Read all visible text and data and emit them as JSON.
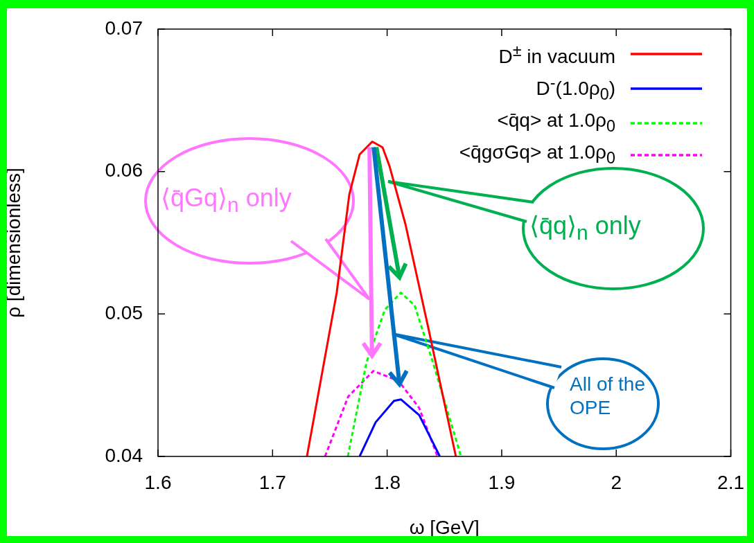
{
  "chart_data": {
    "type": "line",
    "xlabel": "ω [GeV]",
    "ylabel": "ρ [dimensionless]",
    "xlim": [
      1.6,
      2.1
    ],
    "ylim": [
      0.04,
      0.07
    ],
    "xticks": [
      1.6,
      1.7,
      1.8,
      1.9,
      2,
      2.1
    ],
    "yticks": [
      0.04,
      0.05,
      0.06,
      0.07
    ],
    "grid": false,
    "legend": "top right",
    "marker": "none",
    "series": [
      {
        "name": "D$^{±}$ in vacuum",
        "color": "#ff0000",
        "line_style": "solid",
        "x": [
          1.73,
          1.756,
          1.767,
          1.776,
          1.787,
          1.796,
          1.802,
          1.816,
          1.836,
          1.86
        ],
        "values": [
          0.04,
          0.0515,
          0.0584,
          0.0612,
          0.0621,
          0.0617,
          0.0604,
          0.0563,
          0.049,
          0.04
        ]
      },
      {
        "name": "D$^{-}$(1.0ρ$_{0}$)",
        "color": "#0000ff",
        "line_style": "solid",
        "x": [
          1.776,
          1.79,
          1.806,
          1.812,
          1.828,
          1.846
        ],
        "values": [
          0.04,
          0.0424,
          0.0439,
          0.044,
          0.0429,
          0.04
        ]
      },
      {
        "name": "<q̄q> at 1.0ρ$_{0}$",
        "color": "#00ff00",
        "line_style": "dashed",
        "x": [
          1.7657,
          1.782,
          1.798,
          1.812,
          1.824,
          1.84,
          1.8645
        ],
        "values": [
          0.04,
          0.0466,
          0.0503,
          0.0515,
          0.0506,
          0.0466,
          0.04
        ]
      },
      {
        "name": "<q̄gσGq> at 1.0ρ$_{0}$",
        "color": "#ff00ff",
        "line_style": "dashed",
        "x": [
          1.7458,
          1.766,
          1.788,
          1.81,
          1.828,
          1.844
        ],
        "values": [
          0.04,
          0.0442,
          0.046,
          0.0453,
          0.0434,
          0.04
        ]
      }
    ],
    "annotations": [
      "⟨q̄Gq⟩$_{n}$ only",
      "⟨q̄q⟩$_{n}$ only",
      "All of the OPE"
    ]
  }
}
